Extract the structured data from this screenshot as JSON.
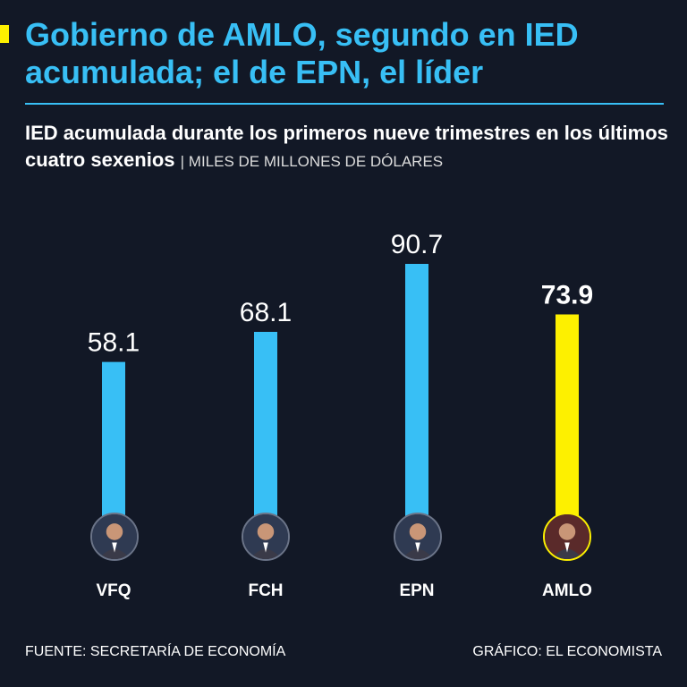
{
  "header": {
    "title": "Gobierno de AMLO, segundo en IED acumulada; el de EPN, el líder",
    "subtitle": "IED acumulada durante los primeros nueve trimestres en los últimos cuatro sexenios",
    "units": "| MILES DE MILLONES DE DÓLARES"
  },
  "chart_data": {
    "type": "bar",
    "title": "IED acumulada durante los primeros nueve trimestres en los últimos cuatro sexenios",
    "ylabel": "MILES DE MILLONES DE DÓLARES",
    "xlabel": "",
    "ylim": [
      0,
      90.7
    ],
    "grid": false,
    "categories": [
      "VFQ",
      "FCH",
      "EPN",
      "AMLO"
    ],
    "values": [
      58.1,
      68.1,
      90.7,
      73.9
    ],
    "value_labels": [
      "58.1",
      "68.1",
      "90.7",
      "73.9"
    ],
    "highlight": "AMLO",
    "colors": {
      "default": "#38bff5",
      "highlight": "#fdf000"
    }
  },
  "footer": {
    "source": "FUENTE: SECRETARÍA DE ECONOMÍA",
    "credit": "GRÁFICO: EL ECONOMISTA"
  }
}
